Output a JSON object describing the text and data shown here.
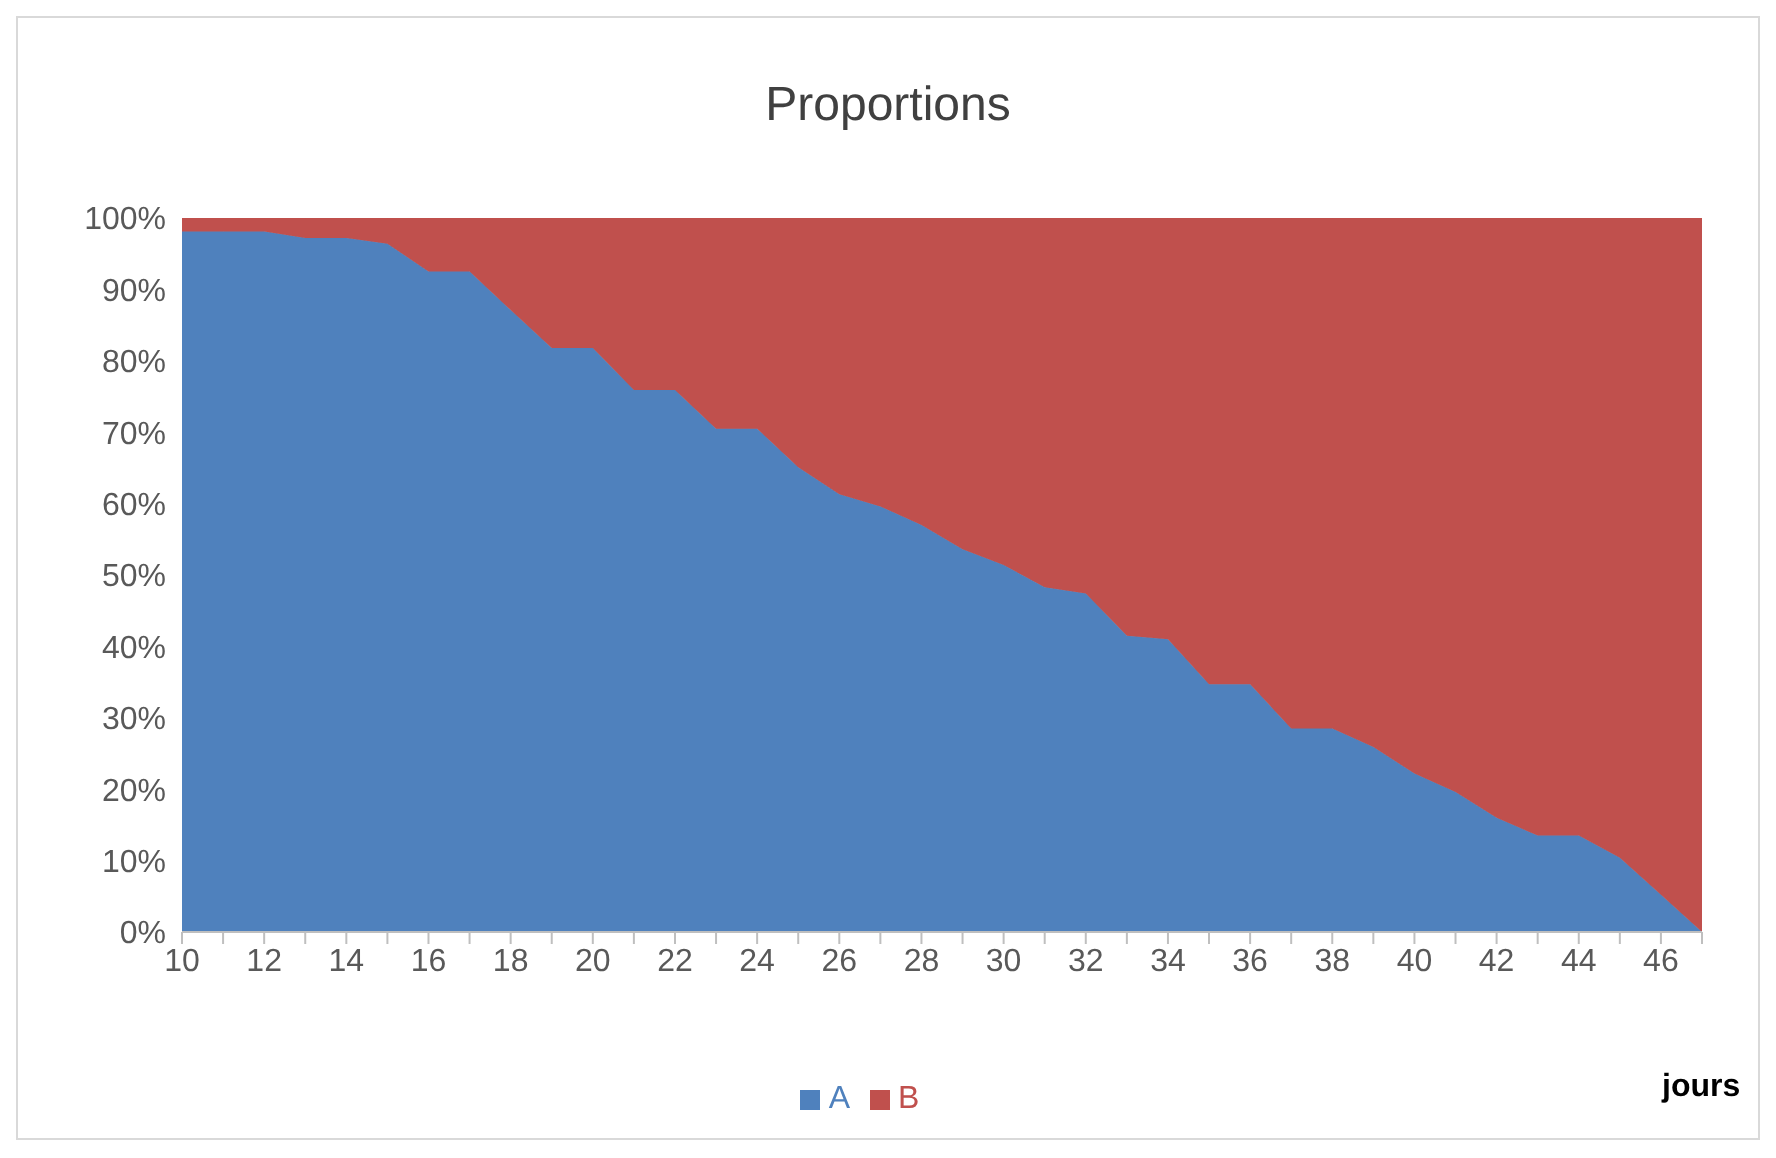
{
  "chart_data": {
    "type": "area",
    "title": "Proportions",
    "xlabel": "jours",
    "stacked": true,
    "legend": "bottom",
    "categories": [
      "10",
      null,
      "12",
      null,
      "14",
      null,
      "16",
      null,
      "18",
      null,
      "20",
      null,
      "22",
      null,
      "24",
      null,
      "26",
      null,
      "28",
      null,
      "30",
      null,
      "32",
      null,
      "34",
      null,
      "36",
      null,
      "38",
      null,
      "40",
      null,
      "42",
      null,
      "44",
      null,
      "46",
      null
    ],
    "series": [
      {
        "name": "A",
        "color": "#4f81bd",
        "values": [
          98.1,
          98.1,
          98.1,
          97.2,
          97.2,
          96.4,
          92.5,
          92.5,
          87.1,
          81.8,
          81.8,
          75.9,
          75.9,
          70.5,
          70.5,
          65.1,
          61.3,
          59.6,
          57,
          53.6,
          51.4,
          48.3,
          47.4,
          41.5,
          41,
          34.7,
          34.7,
          28.5,
          28.5,
          25.9,
          22.2,
          19.6,
          16,
          13.5,
          13.5,
          10.4,
          5.2,
          0
        ]
      },
      {
        "name": "B",
        "color": "#c0504d",
        "values": [
          1.9,
          1.9,
          1.9,
          2.8,
          2.8,
          3.6,
          7.5,
          7.5,
          12.9,
          18.2,
          18.2,
          24.1,
          24.1,
          29.5,
          29.5,
          34.9,
          38.7,
          40.4,
          43,
          46.4,
          48.6,
          51.7,
          52.6,
          58.5,
          59,
          65.3,
          65.3,
          71.5,
          71.5,
          74.1,
          77.8,
          80.4,
          84,
          86.5,
          86.5,
          89.6,
          94.8,
          100
        ]
      }
    ],
    "ylim": [
      0,
      100
    ],
    "yticks": [
      {
        "value": 0,
        "label": "0%"
      },
      {
        "value": 10,
        "label": "10%"
      },
      {
        "value": 20,
        "label": "20%"
      },
      {
        "value": 30,
        "label": "30%"
      },
      {
        "value": 40,
        "label": "40%"
      },
      {
        "value": 50,
        "label": "50%"
      },
      {
        "value": 60,
        "label": "60%"
      },
      {
        "value": 70,
        "label": "70%"
      },
      {
        "value": 80,
        "label": "80%"
      },
      {
        "value": 90,
        "label": "90%"
      },
      {
        "value": 100,
        "label": "100%"
      }
    ]
  }
}
